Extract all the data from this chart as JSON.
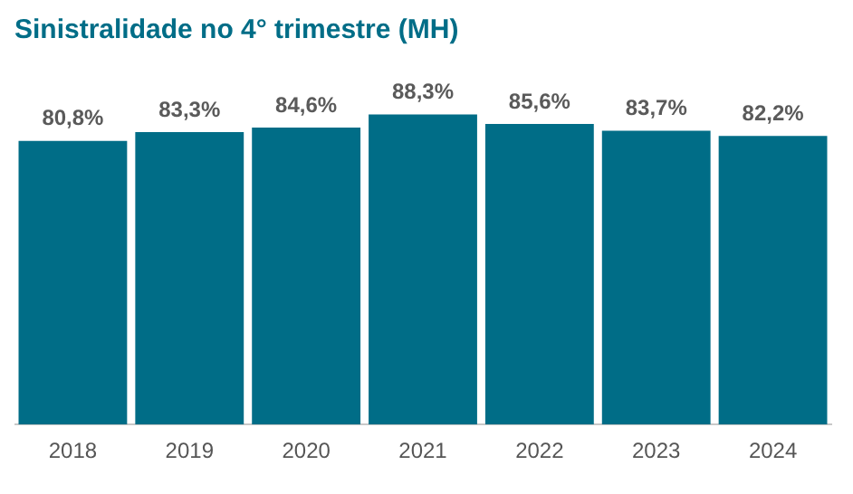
{
  "chart_data": {
    "type": "bar",
    "title": "Sinistralidade no 4° trimestre (MH)",
    "categories": [
      "2018",
      "2019",
      "2020",
      "2021",
      "2022",
      "2023",
      "2024"
    ],
    "values": [
      80.8,
      83.3,
      84.6,
      88.3,
      85.6,
      83.7,
      82.2
    ],
    "value_labels": [
      "80,8%",
      "83,3%",
      "84,6%",
      "88,3%",
      "85,6%",
      "83,7%",
      "82,2%"
    ],
    "color": "#006d87",
    "tick_labels": "x",
    "grid": false,
    "legend": false
  }
}
